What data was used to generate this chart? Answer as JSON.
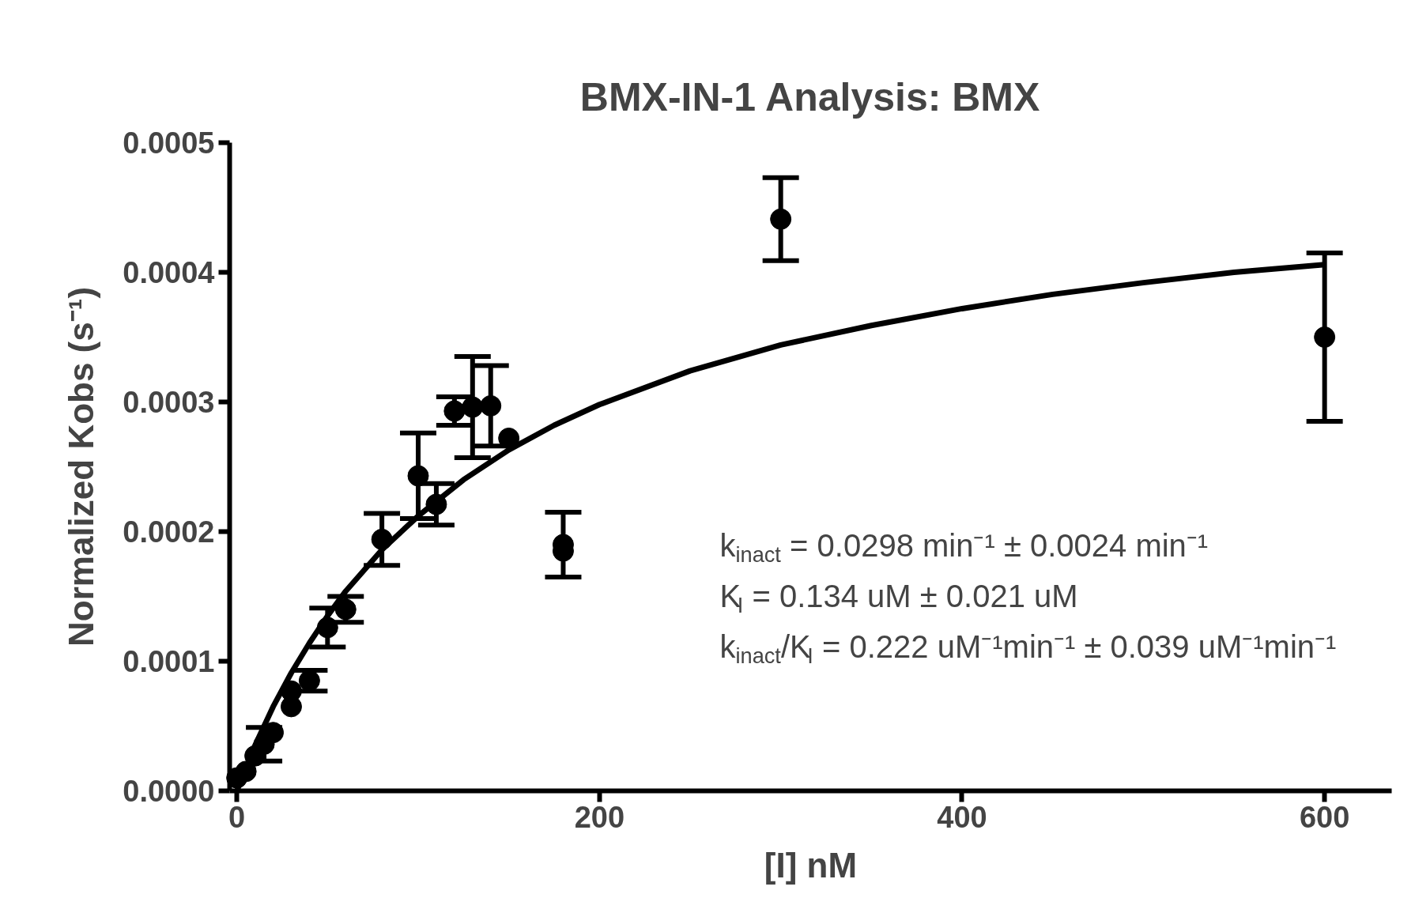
{
  "chart_data": {
    "type": "scatter",
    "title": "BMX-IN-1 Analysis: BMX",
    "xlabel": "[I] nM",
    "ylabel": "Normalized Kobs (s⁻¹)",
    "xlim": [
      -4,
      637
    ],
    "ylim": [
      0,
      0.0005
    ],
    "xticks": [
      0,
      200,
      400,
      600
    ],
    "yticks": [
      {
        "value": 0,
        "label": "0.0000"
      },
      {
        "value": 0.0001,
        "label": "0.0001"
      },
      {
        "value": 0.0002,
        "label": "0.0002"
      },
      {
        "value": 0.0003,
        "label": "0.0003"
      },
      {
        "value": 0.0004,
        "label": "0.0004"
      },
      {
        "value": 0.0005,
        "label": "0.0005"
      }
    ],
    "grid": false,
    "series": [
      {
        "color": "#000000",
        "marker": "circle",
        "x": [
          0,
          5,
          10,
          15,
          20,
          30,
          30,
          40,
          50,
          60,
          80,
          100,
          110,
          120,
          130,
          140,
          150,
          180,
          180,
          300,
          600
        ],
        "values": [
          1e-05,
          1.5e-05,
          2.7e-05,
          3.6e-05,
          4.5e-05,
          6.5e-05,
          7.7e-05,
          8.5e-05,
          0.000126,
          0.00014,
          0.000194,
          0.000243,
          0.000221,
          0.000293,
          0.000296,
          0.000297,
          0.000272,
          0.00019,
          0.000185,
          0.000441,
          0.00035
        ],
        "errors": [
          null,
          null,
          null,
          1.3e-05,
          null,
          null,
          null,
          8e-06,
          1.5e-05,
          1e-05,
          2e-05,
          3.3e-05,
          1.6e-05,
          1.1e-05,
          3.9e-05,
          3.1e-05,
          null,
          2.5e-05,
          null,
          3.2e-05,
          6.5e-05
        ]
      },
      {
        "type": "line",
        "color": "#000000",
        "marker": "none",
        "line_style": "solid",
        "x": [
          0,
          10,
          20,
          30,
          40,
          50,
          60,
          80,
          100,
          125,
          150,
          175,
          200,
          250,
          300,
          350,
          400,
          450,
          500,
          550,
          600
        ],
        "values": [
          0,
          3.5e-05,
          6.5e-05,
          9.1e-05,
          0.000114,
          0.000135,
          0.000154,
          0.000186,
          0.000212,
          0.00024,
          0.000263,
          0.000282,
          0.000298,
          0.000324,
          0.000344,
          0.000359,
          0.000372,
          0.000383,
          0.000392,
          0.0004,
          0.000406
        ]
      }
    ],
    "annotations": [
      "k$_{inact}$ = 0.0298 min⁻¹ ± 0.0024 min⁻¹",
      "K$_{I}$ = 0.134 uM ± 0.021 uM",
      "k$_{inact}$/K$_{I}$ = 0.222 uM⁻¹min⁻¹ ± 0.039 uM⁻¹min⁻¹"
    ]
  }
}
